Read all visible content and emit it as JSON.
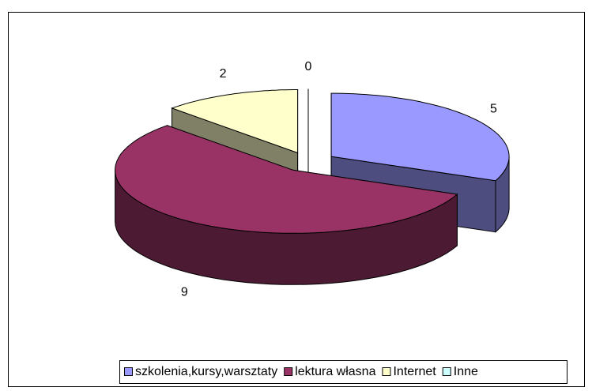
{
  "chart_data": {
    "type": "pie",
    "categories": [
      "szkolenia,kursy,warsztaty",
      "lektura własna",
      "Internet",
      "Inne"
    ],
    "values": [
      5,
      9,
      2,
      0
    ],
    "colors": [
      "#9999ff",
      "#993366",
      "#ffffcc",
      "#ccffff"
    ],
    "legend": "bottom"
  }
}
